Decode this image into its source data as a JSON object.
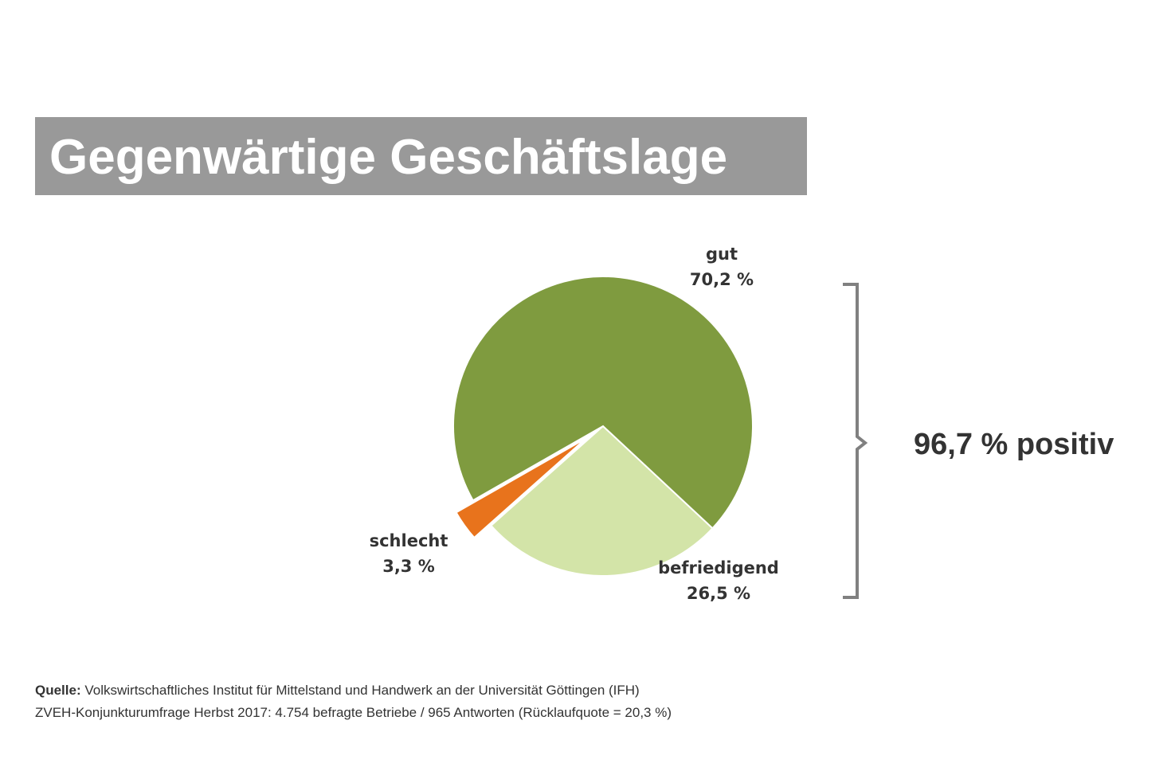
{
  "chart_data": {
    "type": "pie",
    "title": "Gegenwärtige Geschäftslage",
    "categories": [
      "befriedigend",
      "schlecht",
      "gut"
    ],
    "values": [
      26.5,
      3.3,
      70.2
    ],
    "value_labels": [
      "26,5 %",
      "3,3 %",
      "70,2 %"
    ],
    "colors": [
      "#d3e4a8",
      "#e8731c",
      "#7f9b3f"
    ],
    "exploded": [
      false,
      true,
      false
    ],
    "annotation": "96,7 % positiv",
    "source_label": "Quelle:",
    "source_text": "Volkswirtschaftliches Institut für Mittelstand und Handwerk an der Universität Göttingen (IFH)",
    "note": "ZVEH-Konjunkturumfrage Herbst 2017: 4.754 befragte Betriebe / 965 Antworten (Rücklaufquote = 20,3 %)"
  }
}
